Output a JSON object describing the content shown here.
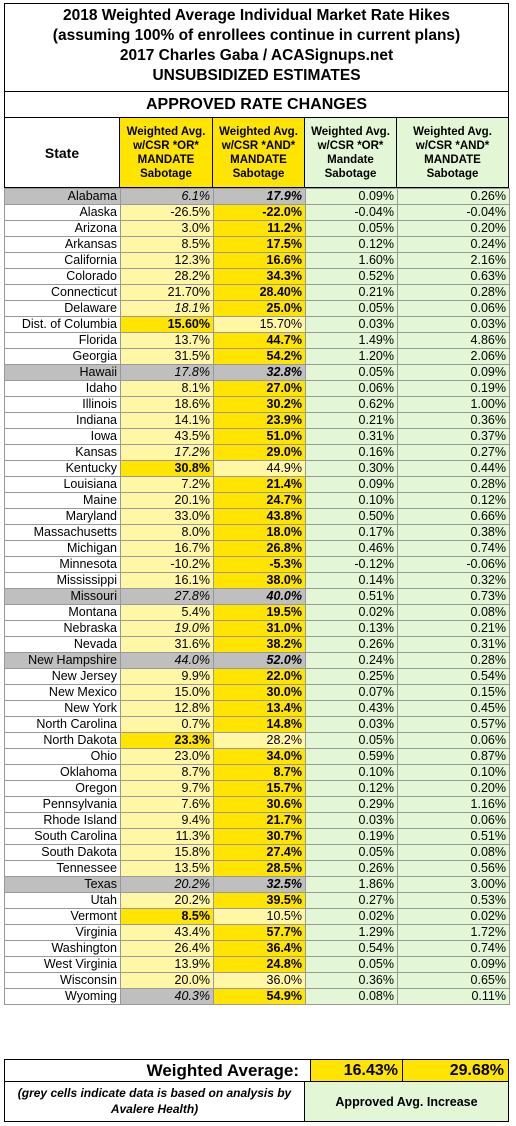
{
  "title_lines": [
    "2018 Weighted Average Individual Market Rate Hikes",
    "(assuming 100% of enrollees continue in current plans)",
    "2017 Charles Gaba / ACASignups.net",
    "UNSUBSIDIZED ESTIMATES"
  ],
  "section_title": "APPROVED RATE CHANGES",
  "headers": {
    "state": "State",
    "col1": [
      "Weighted Avg.",
      "w/CSR *OR*",
      "MANDATE",
      "Sabotage"
    ],
    "col2": [
      "Weighted Avg.",
      "w/CSR *AND*",
      "MANDATE",
      "Sabotage"
    ],
    "col3": [
      "Weighted Avg.",
      "w/CSR *OR*",
      "Mandate",
      "Sabotage"
    ],
    "col4": [
      "Weighted Avg.",
      "w/CSR *AND*",
      "MANDATE",
      "Sabotage"
    ]
  },
  "rows": [
    {
      "state": "Alabama",
      "c1": "6.1%",
      "c2": "17.9%",
      "c3": "0.09%",
      "c4": "0.26%",
      "s": "g",
      "c1s": "g i",
      "c2s": "g b i"
    },
    {
      "state": "Alaska",
      "c1": "-26.5%",
      "c2": "-22.0%",
      "c3": "-0.04%",
      "c4": "-0.04%",
      "s": "",
      "c1s": "y",
      "c2s": "by b"
    },
    {
      "state": "Arizona",
      "c1": "3.0%",
      "c2": "11.2%",
      "c3": "0.05%",
      "c4": "0.20%",
      "s": "",
      "c1s": "y",
      "c2s": "by b"
    },
    {
      "state": "Arkansas",
      "c1": "8.5%",
      "c2": "17.5%",
      "c3": "0.12%",
      "c4": "0.24%",
      "s": "",
      "c1s": "y",
      "c2s": "by b"
    },
    {
      "state": "California",
      "c1": "12.3%",
      "c2": "16.6%",
      "c3": "1.60%",
      "c4": "2.16%",
      "s": "",
      "c1s": "y",
      "c2s": "by b"
    },
    {
      "state": "Colorado",
      "c1": "28.2%",
      "c2": "34.3%",
      "c3": "0.52%",
      "c4": "0.63%",
      "s": "",
      "c1s": "y",
      "c2s": "by b"
    },
    {
      "state": "Connecticut",
      "c1": "21.70%",
      "c2": "28.40%",
      "c3": "0.21%",
      "c4": "0.28%",
      "s": "",
      "c1s": "y",
      "c2s": "by b"
    },
    {
      "state": "Delaware",
      "c1": "18.1%",
      "c2": "25.0%",
      "c3": "0.05%",
      "c4": "0.06%",
      "s": "",
      "c1s": "y i",
      "c2s": "by b"
    },
    {
      "state": "Dist. of Columbia",
      "c1": "15.60%",
      "c2": "15.70%",
      "c3": "0.03%",
      "c4": "0.03%",
      "s": "",
      "c1s": "by b",
      "c2s": "y"
    },
    {
      "state": "Florida",
      "c1": "13.7%",
      "c2": "44.7%",
      "c3": "1.49%",
      "c4": "4.86%",
      "s": "",
      "c1s": "y",
      "c2s": "by b"
    },
    {
      "state": "Georgia",
      "c1": "31.5%",
      "c2": "54.2%",
      "c3": "1.20%",
      "c4": "2.06%",
      "s": "",
      "c1s": "y",
      "c2s": "by b"
    },
    {
      "state": "Hawaii",
      "c1": "17.8%",
      "c2": "32.8%",
      "c3": "0.05%",
      "c4": "0.09%",
      "s": "g",
      "c1s": "g i",
      "c2s": "g b i"
    },
    {
      "state": "Idaho",
      "c1": "8.1%",
      "c2": "27.0%",
      "c3": "0.06%",
      "c4": "0.19%",
      "s": "",
      "c1s": "y",
      "c2s": "by b"
    },
    {
      "state": "Illinois",
      "c1": "18.6%",
      "c2": "30.2%",
      "c3": "0.62%",
      "c4": "1.00%",
      "s": "",
      "c1s": "y",
      "c2s": "by b"
    },
    {
      "state": "Indiana",
      "c1": "14.1%",
      "c2": "23.9%",
      "c3": "0.21%",
      "c4": "0.36%",
      "s": "",
      "c1s": "y",
      "c2s": "by b"
    },
    {
      "state": "Iowa",
      "c1": "43.5%",
      "c2": "51.0%",
      "c3": "0.31%",
      "c4": "0.37%",
      "s": "",
      "c1s": "y",
      "c2s": "by b"
    },
    {
      "state": "Kansas",
      "c1": "17.2%",
      "c2": "29.0%",
      "c3": "0.16%",
      "c4": "0.27%",
      "s": "",
      "c1s": "y i",
      "c2s": "by b"
    },
    {
      "state": "Kentucky",
      "c1": "30.8%",
      "c2": "44.9%",
      "c3": "0.30%",
      "c4": "0.44%",
      "s": "",
      "c1s": "by b",
      "c2s": "y"
    },
    {
      "state": "Louisiana",
      "c1": "7.2%",
      "c2": "21.4%",
      "c3": "0.09%",
      "c4": "0.28%",
      "s": "",
      "c1s": "y",
      "c2s": "by b"
    },
    {
      "state": "Maine",
      "c1": "20.1%",
      "c2": "24.7%",
      "c3": "0.10%",
      "c4": "0.12%",
      "s": "",
      "c1s": "y",
      "c2s": "by b"
    },
    {
      "state": "Maryland",
      "c1": "33.0%",
      "c2": "43.8%",
      "c3": "0.50%",
      "c4": "0.66%",
      "s": "",
      "c1s": "y",
      "c2s": "by b"
    },
    {
      "state": "Massachusetts",
      "c1": "8.0%",
      "c2": "18.0%",
      "c3": "0.17%",
      "c4": "0.38%",
      "s": "",
      "c1s": "y",
      "c2s": "by b"
    },
    {
      "state": "Michigan",
      "c1": "16.7%",
      "c2": "26.8%",
      "c3": "0.46%",
      "c4": "0.74%",
      "s": "",
      "c1s": "y",
      "c2s": "by b"
    },
    {
      "state": "Minnesota",
      "c1": "-10.2%",
      "c2": "-5.3%",
      "c3": "-0.12%",
      "c4": "-0.06%",
      "s": "",
      "c1s": "y",
      "c2s": "by b"
    },
    {
      "state": "Mississippi",
      "c1": "16.1%",
      "c2": "38.0%",
      "c3": "0.14%",
      "c4": "0.32%",
      "s": "",
      "c1s": "y",
      "c2s": "by b"
    },
    {
      "state": "Missouri",
      "c1": "27.8%",
      "c2": "40.0%",
      "c3": "0.51%",
      "c4": "0.73%",
      "s": "g",
      "c1s": "g i",
      "c2s": "g b i"
    },
    {
      "state": "Montana",
      "c1": "5.4%",
      "c2": "19.5%",
      "c3": "0.02%",
      "c4": "0.08%",
      "s": "",
      "c1s": "y",
      "c2s": "by b"
    },
    {
      "state": "Nebraska",
      "c1": "19.0%",
      "c2": "31.0%",
      "c3": "0.13%",
      "c4": "0.21%",
      "s": "",
      "c1s": "y i",
      "c2s": "by b"
    },
    {
      "state": "Nevada",
      "c1": "31.6%",
      "c2": "38.2%",
      "c3": "0.26%",
      "c4": "0.31%",
      "s": "",
      "c1s": "y",
      "c2s": "by b"
    },
    {
      "state": "New Hampshire",
      "c1": "44.0%",
      "c2": "52.0%",
      "c3": "0.24%",
      "c4": "0.28%",
      "s": "g",
      "c1s": "g i",
      "c2s": "g b i"
    },
    {
      "state": "New Jersey",
      "c1": "9.9%",
      "c2": "22.0%",
      "c3": "0.25%",
      "c4": "0.54%",
      "s": "",
      "c1s": "y",
      "c2s": "by b"
    },
    {
      "state": "New Mexico",
      "c1": "15.0%",
      "c2": "30.0%",
      "c3": "0.07%",
      "c4": "0.15%",
      "s": "",
      "c1s": "y",
      "c2s": "by b"
    },
    {
      "state": "New York",
      "c1": "12.8%",
      "c2": "13.4%",
      "c3": "0.43%",
      "c4": "0.45%",
      "s": "",
      "c1s": "y",
      "c2s": "by b"
    },
    {
      "state": "North Carolina",
      "c1": "0.7%",
      "c2": "14.8%",
      "c3": "0.03%",
      "c4": "0.57%",
      "s": "",
      "c1s": "y",
      "c2s": "by b"
    },
    {
      "state": "North Dakota",
      "c1": "23.3%",
      "c2": "28.2%",
      "c3": "0.05%",
      "c4": "0.06%",
      "s": "",
      "c1s": "by b",
      "c2s": "y"
    },
    {
      "state": "Ohio",
      "c1": "23.0%",
      "c2": "34.0%",
      "c3": "0.59%",
      "c4": "0.87%",
      "s": "",
      "c1s": "y",
      "c2s": "by b"
    },
    {
      "state": "Oklahoma",
      "c1": "8.7%",
      "c2": "8.7%",
      "c3": "0.10%",
      "c4": "0.10%",
      "s": "",
      "c1s": "y",
      "c2s": "by b"
    },
    {
      "state": "Oregon",
      "c1": "9.7%",
      "c2": "15.7%",
      "c3": "0.12%",
      "c4": "0.20%",
      "s": "",
      "c1s": "y",
      "c2s": "by b"
    },
    {
      "state": "Pennsylvania",
      "c1": "7.6%",
      "c2": "30.6%",
      "c3": "0.29%",
      "c4": "1.16%",
      "s": "",
      "c1s": "y",
      "c2s": "by b"
    },
    {
      "state": "Rhode Island",
      "c1": "9.4%",
      "c2": "21.7%",
      "c3": "0.03%",
      "c4": "0.06%",
      "s": "",
      "c1s": "y",
      "c2s": "by b"
    },
    {
      "state": "South Carolina",
      "c1": "11.3%",
      "c2": "30.7%",
      "c3": "0.19%",
      "c4": "0.51%",
      "s": "",
      "c1s": "y",
      "c2s": "by b"
    },
    {
      "state": "South Dakota",
      "c1": "15.8%",
      "c2": "27.4%",
      "c3": "0.05%",
      "c4": "0.08%",
      "s": "",
      "c1s": "y",
      "c2s": "by b"
    },
    {
      "state": "Tennessee",
      "c1": "13.5%",
      "c2": "28.5%",
      "c3": "0.26%",
      "c4": "0.56%",
      "s": "",
      "c1s": "y",
      "c2s": "by b"
    },
    {
      "state": "Texas",
      "c1": "20.2%",
      "c2": "32.5%",
      "c3": "1.86%",
      "c4": "3.00%",
      "s": "g",
      "c1s": "g i",
      "c2s": "g b i"
    },
    {
      "state": "Utah",
      "c1": "20.2%",
      "c2": "39.5%",
      "c3": "0.27%",
      "c4": "0.53%",
      "s": "",
      "c1s": "y",
      "c2s": "by b"
    },
    {
      "state": "Vermont",
      "c1": "8.5%",
      "c2": "10.5%",
      "c3": "0.02%",
      "c4": "0.02%",
      "s": "",
      "c1s": "by b",
      "c2s": "y"
    },
    {
      "state": "Virginia",
      "c1": "43.4%",
      "c2": "57.7%",
      "c3": "1.29%",
      "c4": "1.72%",
      "s": "",
      "c1s": "y",
      "c2s": "by b"
    },
    {
      "state": "Washington",
      "c1": "26.4%",
      "c2": "36.4%",
      "c3": "0.54%",
      "c4": "0.74%",
      "s": "",
      "c1s": "y",
      "c2s": "by b"
    },
    {
      "state": "West Virginia",
      "c1": "13.9%",
      "c2": "24.8%",
      "c3": "0.05%",
      "c4": "0.09%",
      "s": "",
      "c1s": "y",
      "c2s": "by b"
    },
    {
      "state": "Wisconsin",
      "c1": "20.0%",
      "c2": "36.0%",
      "c3": "0.36%",
      "c4": "0.65%",
      "s": "",
      "c1s": "y",
      "c2s": "y"
    },
    {
      "state": "Wyoming",
      "c1": "40.3%",
      "c2": "54.9%",
      "c3": "0.08%",
      "c4": "0.11%",
      "s": "",
      "c1s": "g i",
      "c2s": "by b"
    }
  ],
  "footer": {
    "weighted_label": "Weighted Average:",
    "weighted_or": "16.43%",
    "weighted_and": "29.68%",
    "note": "(grey cells indicate data is based on analysis by Avalere Health)",
    "approved_increase": "Approved Avg. Increase"
  }
}
